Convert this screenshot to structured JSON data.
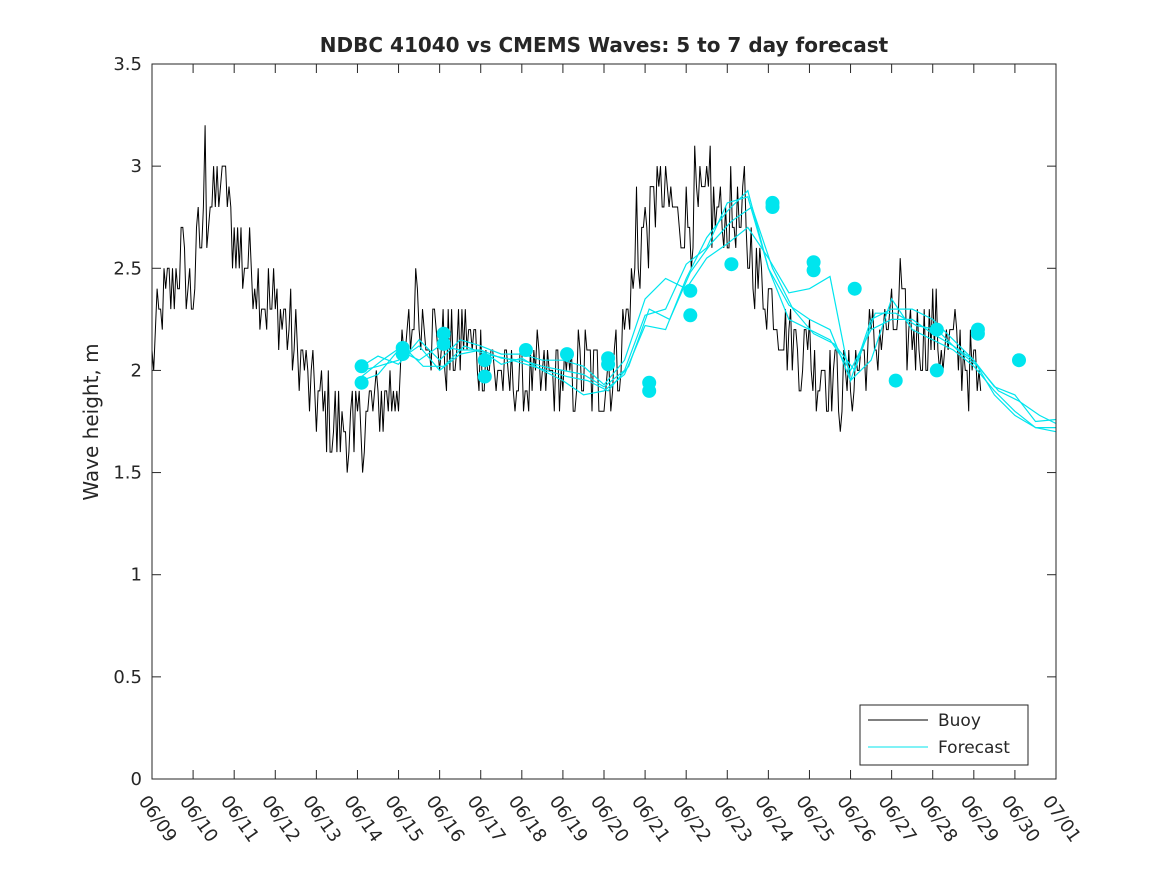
{
  "chart_data": {
    "type": "line",
    "title": "NDBC 41040 vs CMEMS Waves: 5 to 7 day forecast",
    "xlabel": "",
    "ylabel": "Wave height, m",
    "x_tick_labels": [
      "06/09",
      "06/10",
      "06/11",
      "06/12",
      "06/13",
      "06/14",
      "06/15",
      "06/16",
      "06/17",
      "06/18",
      "06/19",
      "06/20",
      "06/21",
      "06/22",
      "06/23",
      "06/24",
      "06/25",
      "06/26",
      "06/27",
      "06/28",
      "06/29",
      "06/30",
      "07/01"
    ],
    "x_unit": "days since 06/09",
    "xlim": [
      0,
      22
    ],
    "ylim": [
      0,
      3.5
    ],
    "y_ticks": [
      0,
      0.5,
      1,
      1.5,
      2,
      2.5,
      3,
      3.5
    ],
    "y_tick_labels": [
      "0",
      "0.5",
      "1",
      "1.5",
      "2",
      "2.5",
      "3",
      "3.5"
    ],
    "grid": false,
    "legend_position": "bottom-right",
    "colors": {
      "buoy": "#000000",
      "forecast": "#00e5ee",
      "axes": "#262626"
    },
    "buoy": {
      "name": "Buoy",
      "anchors": [
        [
          0.0,
          2.05
        ],
        [
          0.15,
          2.2
        ],
        [
          0.3,
          2.35
        ],
        [
          0.5,
          2.4
        ],
        [
          0.7,
          2.55
        ],
        [
          0.9,
          2.4
        ],
        [
          1.0,
          2.4
        ],
        [
          1.1,
          2.6
        ],
        [
          1.3,
          2.7
        ],
        [
          1.4,
          2.8
        ],
        [
          1.55,
          2.85
        ],
        [
          1.7,
          2.9
        ],
        [
          1.85,
          2.75
        ],
        [
          2.0,
          2.65
        ],
        [
          2.2,
          2.55
        ],
        [
          2.4,
          2.55
        ],
        [
          2.6,
          2.45
        ],
        [
          2.8,
          2.35
        ],
        [
          3.0,
          2.3
        ],
        [
          3.2,
          2.25
        ],
        [
          3.4,
          2.15
        ],
        [
          3.6,
          2.05
        ],
        [
          3.8,
          1.95
        ],
        [
          4.0,
          1.85
        ],
        [
          4.2,
          1.8
        ],
        [
          4.4,
          1.75
        ],
        [
          4.6,
          1.7
        ],
        [
          4.8,
          1.7
        ],
        [
          5.0,
          1.75
        ],
        [
          5.2,
          1.75
        ],
        [
          5.4,
          1.8
        ],
        [
          5.6,
          1.85
        ],
        [
          5.8,
          1.9
        ],
        [
          6.0,
          1.95
        ],
        [
          6.2,
          2.1
        ],
        [
          6.4,
          2.25
        ],
        [
          6.6,
          2.3
        ],
        [
          6.8,
          2.2
        ],
        [
          7.0,
          2.1
        ],
        [
          7.2,
          2.1
        ],
        [
          7.4,
          2.05
        ],
        [
          7.6,
          2.2
        ],
        [
          7.8,
          2.1
        ],
        [
          8.0,
          2.1
        ],
        [
          8.2,
          2.05
        ],
        [
          8.4,
          2.0
        ],
        [
          8.6,
          1.95
        ],
        [
          8.8,
          1.95
        ],
        [
          9.0,
          1.95
        ],
        [
          9.2,
          1.95
        ],
        [
          9.4,
          1.95
        ],
        [
          9.6,
          1.95
        ],
        [
          9.8,
          1.95
        ],
        [
          10.0,
          1.95
        ],
        [
          10.2,
          1.95
        ],
        [
          10.4,
          2.0
        ],
        [
          10.6,
          2.0
        ],
        [
          10.8,
          1.95
        ],
        [
          11.0,
          1.95
        ],
        [
          11.2,
          2.0
        ],
        [
          11.4,
          2.1
        ],
        [
          11.6,
          2.3
        ],
        [
          11.8,
          2.5
        ],
        [
          12.0,
          2.7
        ],
        [
          12.2,
          2.75
        ],
        [
          12.4,
          2.8
        ],
        [
          12.6,
          2.8
        ],
        [
          12.8,
          2.75
        ],
        [
          13.0,
          2.75
        ],
        [
          13.2,
          2.75
        ],
        [
          13.4,
          2.8
        ],
        [
          13.6,
          2.8
        ],
        [
          13.8,
          2.75
        ],
        [
          14.0,
          2.75
        ],
        [
          14.2,
          2.75
        ],
        [
          14.4,
          2.65
        ],
        [
          14.6,
          2.55
        ],
        [
          14.8,
          2.45
        ],
        [
          15.0,
          2.4
        ],
        [
          15.2,
          2.3
        ],
        [
          15.4,
          2.2
        ],
        [
          15.6,
          2.15
        ],
        [
          15.8,
          2.1
        ],
        [
          16.0,
          2.05
        ],
        [
          16.2,
          2.0
        ],
        [
          16.4,
          2.0
        ],
        [
          16.6,
          1.95
        ],
        [
          16.8,
          1.9
        ],
        [
          17.0,
          1.95
        ],
        [
          17.2,
          2.05
        ],
        [
          17.4,
          2.1
        ],
        [
          17.6,
          2.15
        ],
        [
          17.8,
          2.2
        ],
        [
          18.0,
          2.2
        ],
        [
          18.2,
          2.2
        ],
        [
          18.4,
          2.2
        ],
        [
          18.6,
          2.2
        ],
        [
          18.8,
          2.15
        ],
        [
          19.0,
          2.2
        ],
        [
          19.2,
          2.15
        ],
        [
          19.4,
          2.15
        ],
        [
          19.6,
          2.1
        ],
        [
          19.8,
          2.05
        ],
        [
          20.0,
          1.95
        ],
        [
          20.2,
          1.85
        ]
      ],
      "spikes": [
        [
          1.3,
          3.2
        ],
        [
          11.8,
          2.9
        ],
        [
          12.3,
          3.0
        ],
        [
          13.2,
          3.1
        ],
        [
          13.6,
          3.1
        ],
        [
          14.4,
          3.0
        ],
        [
          6.4,
          2.5
        ],
        [
          1.8,
          3.0
        ],
        [
          16.0,
          2.25
        ],
        [
          18.2,
          2.55
        ],
        [
          4.9,
          1.6
        ]
      ]
    },
    "forecast": {
      "name": "Forecast",
      "series": [
        [
          [
            5.1,
            2.02
          ],
          [
            5.5,
            2.07
          ],
          [
            6.0,
            2.03
          ],
          [
            6.5,
            2.15
          ],
          [
            7.0,
            2.05
          ],
          [
            7.5,
            2.15
          ],
          [
            8.0,
            2.12
          ],
          [
            8.5,
            2.08
          ],
          [
            9.0,
            2.08
          ],
          [
            9.5,
            2.05
          ],
          [
            10.0,
            2.05
          ],
          [
            10.5,
            2.02
          ],
          [
            11.0,
            1.93
          ],
          [
            11.5,
            2.05
          ],
          [
            12.0,
            2.35
          ],
          [
            12.5,
            2.45
          ],
          [
            13.0,
            2.4
          ],
          [
            13.5,
            2.55
          ],
          [
            14.0,
            2.62
          ],
          [
            14.5,
            2.7
          ],
          [
            15.0,
            2.55
          ],
          [
            15.5,
            2.38
          ],
          [
            16.0,
            2.4
          ],
          [
            16.5,
            2.46
          ],
          [
            17.0,
            1.95
          ],
          [
            17.5,
            2.25
          ],
          [
            18.0,
            2.3
          ],
          [
            18.5,
            2.3
          ],
          [
            19.0,
            2.25
          ],
          [
            19.5,
            2.15
          ],
          [
            20.0,
            2.05
          ],
          [
            20.5,
            1.92
          ],
          [
            21.0,
            1.88
          ],
          [
            21.5,
            1.75
          ],
          [
            22.0,
            1.76
          ]
        ],
        [
          [
            5.1,
            1.95
          ],
          [
            5.5,
            1.98
          ],
          [
            6.0,
            2.1
          ],
          [
            6.5,
            2.05
          ],
          [
            7.0,
            2.12
          ],
          [
            7.5,
            2.1
          ],
          [
            8.0,
            2.1
          ],
          [
            8.5,
            2.06
          ],
          [
            9.0,
            2.05
          ],
          [
            9.5,
            2.02
          ],
          [
            10.0,
            2.0
          ],
          [
            10.5,
            1.98
          ],
          [
            11.0,
            1.92
          ],
          [
            11.5,
            2.0
          ],
          [
            12.0,
            2.27
          ],
          [
            12.5,
            2.3
          ],
          [
            13.0,
            2.52
          ],
          [
            13.5,
            2.6
          ],
          [
            14.0,
            2.82
          ],
          [
            14.5,
            2.85
          ],
          [
            15.0,
            2.5
          ],
          [
            15.5,
            2.32
          ],
          [
            16.0,
            2.25
          ],
          [
            16.5,
            2.2
          ],
          [
            17.0,
            1.95
          ],
          [
            17.5,
            2.05
          ],
          [
            18.0,
            2.35
          ],
          [
            18.5,
            2.2
          ],
          [
            19.0,
            2.15
          ],
          [
            19.5,
            2.1
          ],
          [
            20.0,
            2.02
          ],
          [
            20.5,
            1.9
          ],
          [
            21.0,
            1.8
          ],
          [
            21.5,
            1.72
          ],
          [
            22.0,
            1.72
          ]
        ],
        [
          [
            5.1,
            2.0
          ],
          [
            5.5,
            2.02
          ],
          [
            6.0,
            2.05
          ],
          [
            6.5,
            2.12
          ],
          [
            7.0,
            2.0
          ],
          [
            7.5,
            2.08
          ],
          [
            8.0,
            2.1
          ],
          [
            8.5,
            2.03
          ],
          [
            9.0,
            2.06
          ],
          [
            9.5,
            2.0
          ],
          [
            10.0,
            1.95
          ],
          [
            10.5,
            1.88
          ],
          [
            11.0,
            1.9
          ],
          [
            11.5,
            1.98
          ],
          [
            12.0,
            2.22
          ],
          [
            12.5,
            2.2
          ],
          [
            13.0,
            2.45
          ],
          [
            13.5,
            2.65
          ],
          [
            14.0,
            2.78
          ],
          [
            14.5,
            2.88
          ],
          [
            15.0,
            2.5
          ],
          [
            15.5,
            2.25
          ],
          [
            16.0,
            2.2
          ],
          [
            16.5,
            2.15
          ],
          [
            17.0,
            2.0
          ],
          [
            17.5,
            2.2
          ],
          [
            18.0,
            2.25
          ],
          [
            18.5,
            2.25
          ],
          [
            19.0,
            2.18
          ],
          [
            19.5,
            2.12
          ],
          [
            20.0,
            2.05
          ],
          [
            20.5,
            1.88
          ],
          [
            21.0,
            1.78
          ],
          [
            21.5,
            1.72
          ],
          [
            22.0,
            1.7
          ]
        ],
        [
          [
            5.1,
            1.97
          ],
          [
            5.6,
            2.05
          ],
          [
            6.1,
            2.12
          ],
          [
            6.6,
            2.02
          ],
          [
            7.1,
            2.02
          ],
          [
            7.6,
            2.12
          ],
          [
            8.1,
            2.08
          ],
          [
            8.6,
            2.06
          ],
          [
            9.1,
            2.03
          ],
          [
            9.6,
            2.0
          ],
          [
            10.1,
            1.97
          ],
          [
            10.6,
            1.95
          ],
          [
            11.1,
            1.9
          ],
          [
            11.6,
            2.02
          ],
          [
            12.1,
            2.3
          ],
          [
            12.6,
            2.25
          ],
          [
            13.1,
            2.48
          ],
          [
            13.6,
            2.62
          ],
          [
            14.1,
            2.73
          ],
          [
            14.6,
            2.8
          ],
          [
            15.1,
            2.5
          ],
          [
            15.6,
            2.3
          ],
          [
            16.1,
            2.18
          ],
          [
            16.6,
            2.13
          ],
          [
            17.1,
            2.0
          ],
          [
            17.6,
            2.28
          ],
          [
            18.1,
            2.28
          ],
          [
            18.6,
            2.22
          ],
          [
            19.1,
            2.2
          ],
          [
            19.6,
            2.1
          ],
          [
            20.1,
            2.02
          ],
          [
            20.6,
            1.9
          ],
          [
            21.1,
            1.85
          ],
          [
            21.6,
            1.78
          ],
          [
            22.0,
            1.74
          ]
        ]
      ],
      "markers": [
        [
          5.1,
          2.02
        ],
        [
          5.1,
          1.94
        ],
        [
          6.1,
          2.11
        ],
        [
          6.1,
          2.08
        ],
        [
          7.1,
          2.18
        ],
        [
          7.1,
          2.13
        ],
        [
          8.1,
          2.05
        ],
        [
          8.1,
          1.97
        ],
        [
          9.1,
          2.1
        ],
        [
          10.1,
          2.08
        ],
        [
          11.1,
          2.06
        ],
        [
          11.1,
          2.03
        ],
        [
          12.1,
          1.94
        ],
        [
          12.1,
          1.9
        ],
        [
          13.1,
          2.39
        ],
        [
          13.1,
          2.27
        ],
        [
          14.1,
          2.52
        ],
        [
          15.1,
          2.8
        ],
        [
          15.1,
          2.82
        ],
        [
          16.1,
          2.53
        ],
        [
          16.1,
          2.49
        ],
        [
          17.1,
          2.4
        ],
        [
          18.1,
          1.95
        ],
        [
          19.1,
          2.2
        ],
        [
          19.1,
          2.0
        ],
        [
          20.1,
          2.2
        ],
        [
          20.1,
          2.18
        ],
        [
          21.1,
          2.05
        ]
      ]
    }
  }
}
